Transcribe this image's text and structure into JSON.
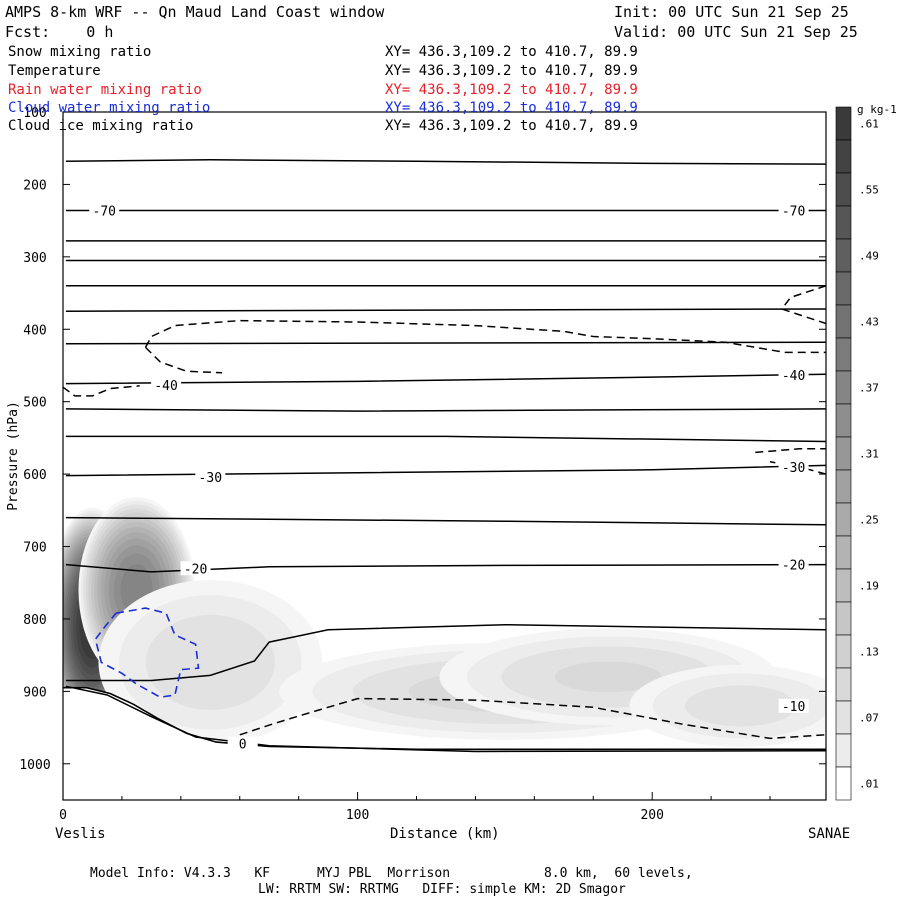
{
  "header": {
    "title": "AMPS 8-km WRF -- Qn Maud Land Coast window",
    "init": "Init: 00 UTC Sun 21 Sep 25",
    "fcst": "Fcst:    0 h",
    "valid": "Valid: 00 UTC Sun 21 Sep 25"
  },
  "fields": [
    {
      "name": "Snow mixing ratio",
      "xy": "XY= 436.3,109.2 to 410.7, 89.9",
      "color": "#000000"
    },
    {
      "name": "Temperature",
      "xy": "XY= 436.3,109.2 to 410.7, 89.9",
      "color": "#000000"
    },
    {
      "name": "Rain water mixing ratio",
      "xy": "XY= 436.3,109.2 to 410.7, 89.9",
      "color": "#e8202a"
    },
    {
      "name": "Cloud water mixing ratio",
      "xy": "XY= 436.3,109.2 to 410.7, 89.9",
      "color": "#1a2ed8"
    },
    {
      "name": "Cloud ice mixing ratio",
      "xy": "XY= 436.3,109.2 to 410.7, 89.9",
      "color": "#000000"
    }
  ],
  "footer": {
    "line1": "Model Info: V4.3.3   KF      MYJ PBL  Morrison            8.0 km,  60 levels,",
    "line2": "LW: RRTM SW: RRTMG   DIFF: simple KM: 2D Smagor"
  },
  "chart_data": {
    "type": "heatmap",
    "title": "AMPS 8-km WRF -- Qn Maud Land Coast window",
    "xlabel": "Distance (km)",
    "ylabel": "Pressure (hPa)",
    "xlim": [
      0,
      259
    ],
    "ylim": [
      1050,
      100
    ],
    "x_ticks": [
      0,
      100,
      200
    ],
    "y_ticks": [
      100,
      200,
      300,
      400,
      500,
      600,
      700,
      800,
      900,
      1000
    ],
    "x_endpoints": {
      "left": "Veslis",
      "right": "SANAE"
    },
    "colorbar": {
      "units": "g kg-1",
      "levels": [
        0.01,
        0.04,
        0.07,
        0.1,
        0.13,
        0.16,
        0.19,
        0.22,
        0.25,
        0.28,
        0.31,
        0.34,
        0.37,
        0.4,
        0.43,
        0.46,
        0.49,
        0.52,
        0.55,
        0.58,
        0.61
      ],
      "tick_labels": [
        ".01",
        ".07",
        ".13",
        ".19",
        ".25",
        ".31",
        ".37",
        ".43",
        ".49",
        ".55",
        ".61"
      ]
    },
    "snow_blobs": [
      {
        "x": 10,
        "p": 810,
        "rx": 16,
        "rp": 165,
        "peak": 0.66
      },
      {
        "x": 25,
        "p": 760,
        "rx": 20,
        "rp": 130,
        "peak": 0.4
      },
      {
        "x": 50,
        "p": 860,
        "rx": 40,
        "rp": 120,
        "peak": 0.1
      },
      {
        "x": 150,
        "p": 900,
        "rx": 80,
        "rp": 70,
        "peak": 0.12
      },
      {
        "x": 185,
        "p": 880,
        "rx": 60,
        "rp": 70,
        "peak": 0.11
      },
      {
        "x": 230,
        "p": 920,
        "rx": 40,
        "rp": 60,
        "peak": 0.09
      }
    ],
    "terrain": [
      [
        0,
        895
      ],
      [
        8,
        895
      ],
      [
        16,
        903
      ],
      [
        24,
        918
      ],
      [
        32,
        937
      ],
      [
        42,
        958
      ],
      [
        52,
        970
      ],
      [
        70,
        976
      ],
      [
        120,
        980
      ],
      [
        200,
        980
      ],
      [
        259,
        980
      ]
    ],
    "isotherms": [
      {
        "label": "-70",
        "points": [
          [
            1,
            168
          ],
          [
            50,
            166
          ],
          [
            120,
            168
          ],
          [
            200,
            171
          ],
          [
            259,
            172
          ]
        ]
      },
      {
        "label": "-70",
        "points": [
          [
            1,
            236
          ],
          [
            100,
            236
          ],
          [
            200,
            236
          ],
          [
            259,
            236
          ]
        ],
        "label_pos": [
          [
            14,
            236
          ],
          [
            248,
            236
          ]
        ]
      },
      {
        "label": "",
        "points": [
          [
            1,
            278
          ],
          [
            259,
            278
          ]
        ]
      },
      {
        "label": "",
        "points": [
          [
            1,
            305
          ],
          [
            259,
            305
          ]
        ]
      },
      {
        "label": "",
        "points": [
          [
            1,
            340
          ],
          [
            259,
            340
          ]
        ]
      },
      {
        "label": "",
        "points": [
          [
            1,
            375
          ],
          [
            259,
            372
          ]
        ]
      },
      {
        "label": "",
        "points": [
          [
            1,
            420
          ],
          [
            259,
            418
          ]
        ]
      },
      {
        "label": "-40",
        "points": [
          [
            1,
            475
          ],
          [
            100,
            472
          ],
          [
            200,
            466
          ],
          [
            259,
            462
          ]
        ],
        "label_pos": [
          [
            35,
            477
          ],
          [
            248,
            463
          ]
        ]
      },
      {
        "label": "",
        "points": [
          [
            1,
            510
          ],
          [
            100,
            513
          ],
          [
            259,
            510
          ]
        ]
      },
      {
        "label": "",
        "points": [
          [
            1,
            548
          ],
          [
            130,
            548
          ],
          [
            259,
            555
          ]
        ]
      },
      {
        "label": "-30",
        "points": [
          [
            1,
            602
          ],
          [
            100,
            598
          ],
          [
            200,
            594
          ],
          [
            259,
            588
          ]
        ],
        "label_pos": [
          [
            50,
            604
          ]
        ]
      },
      {
        "label": "",
        "points": [
          [
            1,
            660
          ],
          [
            150,
            665
          ],
          [
            259,
            670
          ]
        ]
      },
      {
        "label": "-20",
        "points": [
          [
            1,
            725
          ],
          [
            30,
            735
          ],
          [
            70,
            728
          ],
          [
            150,
            726
          ],
          [
            259,
            725
          ]
        ],
        "label_pos": [
          [
            45,
            730
          ],
          [
            248,
            725
          ]
        ]
      },
      {
        "label": "",
        "points": [
          [
            1,
            885
          ],
          [
            30,
            885
          ],
          [
            50,
            878
          ],
          [
            65,
            858
          ],
          [
            70,
            832
          ],
          [
            90,
            815
          ],
          [
            150,
            808
          ],
          [
            259,
            815
          ]
        ]
      },
      {
        "label": "0",
        "points": [
          [
            1,
            893
          ],
          [
            15,
            905
          ],
          [
            30,
            935
          ],
          [
            45,
            963
          ],
          [
            70,
            975
          ],
          [
            140,
            983
          ],
          [
            259,
            982
          ]
        ],
        "label_pos": [
          [
            61,
            972
          ]
        ]
      }
    ],
    "dashed_contours": [
      {
        "points": [
          [
            28,
            425
          ],
          [
            30,
            410
          ],
          [
            38,
            395
          ],
          [
            60,
            388
          ],
          [
            100,
            390
          ],
          [
            140,
            395
          ],
          [
            170,
            403
          ],
          [
            180,
            410
          ],
          [
            200,
            413
          ],
          [
            225,
            418
          ],
          [
            245,
            432
          ],
          [
            259,
            432
          ]
        ]
      },
      {
        "points": [
          [
            28,
            425
          ],
          [
            33,
            445
          ],
          [
            42,
            458
          ],
          [
            54,
            460
          ]
        ]
      },
      {
        "points": [
          [
            0,
            480
          ],
          [
            4,
            492
          ],
          [
            10,
            492
          ],
          [
            16,
            482
          ],
          [
            26,
            478
          ]
        ]
      },
      {
        "points": [
          [
            259,
            340
          ],
          [
            247,
            356
          ],
          [
            244,
            372
          ],
          [
            259,
            392
          ]
        ]
      },
      {
        "points": [
          [
            235,
            570
          ],
          [
            250,
            565
          ],
          [
            259,
            565
          ]
        ]
      },
      {
        "points": [
          [
            259,
            600
          ],
          [
            250,
            590
          ],
          [
            240,
            583
          ]
        ]
      },
      {
        "points": [
          [
            60,
            960
          ],
          [
            72,
            944
          ],
          [
            85,
            928
          ],
          [
            100,
            910
          ],
          [
            140,
            912
          ],
          [
            180,
            922
          ],
          [
            210,
            945
          ],
          [
            240,
            965
          ],
          [
            259,
            960
          ]
        ]
      }
    ],
    "cloud_water_contour": {
      "points": [
        [
          18,
          792
        ],
        [
          28,
          785
        ],
        [
          35,
          792
        ],
        [
          38,
          822
        ],
        [
          45,
          835
        ],
        [
          46,
          868
        ],
        [
          40,
          870
        ],
        [
          38,
          905
        ],
        [
          33,
          908
        ],
        [
          25,
          890
        ],
        [
          20,
          875
        ],
        [
          13,
          860
        ],
        [
          11,
          828
        ],
        [
          14,
          812
        ],
        [
          18,
          792
        ]
      ]
    },
    "right_labels": [
      {
        "label": "-10",
        "p": 920,
        "x": 248
      },
      {
        "label": "-30",
        "p": 590,
        "x": 248
      }
    ]
  }
}
